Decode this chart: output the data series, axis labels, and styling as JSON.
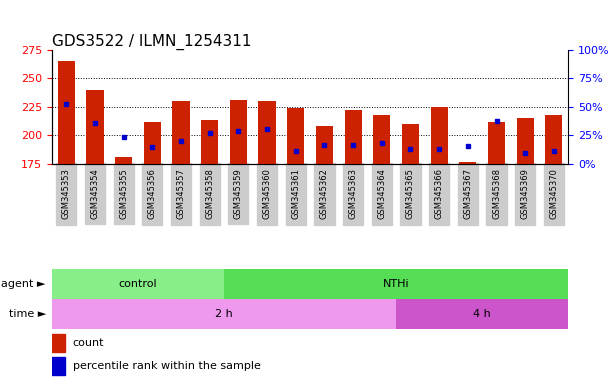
{
  "title": "GDS3522 / ILMN_1254311",
  "samples": [
    "GSM345353",
    "GSM345354",
    "GSM345355",
    "GSM345356",
    "GSM345357",
    "GSM345358",
    "GSM345359",
    "GSM345360",
    "GSM345361",
    "GSM345362",
    "GSM345363",
    "GSM345364",
    "GSM345365",
    "GSM345366",
    "GSM345367",
    "GSM345368",
    "GSM345369",
    "GSM345370"
  ],
  "bar_bottom": 175,
  "bar_tops": [
    265,
    240,
    181,
    212,
    230,
    214,
    231,
    230,
    224,
    208,
    222,
    218,
    210,
    225,
    177,
    212,
    215,
    218
  ],
  "blue_y": [
    228,
    211,
    199,
    190,
    195,
    202,
    204,
    206,
    186,
    192,
    192,
    193,
    188,
    188,
    191,
    213,
    185,
    186
  ],
  "ylim_left": [
    175,
    275
  ],
  "ylim_right": [
    0,
    100
  ],
  "yticks_left": [
    175,
    200,
    225,
    250,
    275
  ],
  "yticks_right": [
    0,
    25,
    50,
    75,
    100
  ],
  "ytick_labels_right": [
    "0%",
    "25%",
    "50%",
    "75%",
    "100%"
  ],
  "bar_color": "#cc2200",
  "blue_color": "#0000cc",
  "agent_groups": [
    {
      "label": "control",
      "start": 0,
      "end": 5,
      "color": "#88ee88"
    },
    {
      "label": "NTHi",
      "start": 6,
      "end": 17,
      "color": "#55dd55"
    }
  ],
  "time_groups": [
    {
      "label": "2 h",
      "start": 0,
      "end": 11,
      "color": "#ee99ee"
    },
    {
      "label": "4 h",
      "start": 12,
      "end": 17,
      "color": "#cc55cc"
    }
  ],
  "agent_label": "agent",
  "time_label": "time",
  "legend_count_label": "count",
  "legend_pct_label": "percentile rank within the sample",
  "title_fontsize": 11,
  "axis_fontsize": 8,
  "tick_fontsize": 6,
  "row_label_fontsize": 8,
  "row_content_fontsize": 8,
  "legend_fontsize": 8,
  "grid_dotted_color": "#000000",
  "xticklabel_bg": "#cccccc"
}
